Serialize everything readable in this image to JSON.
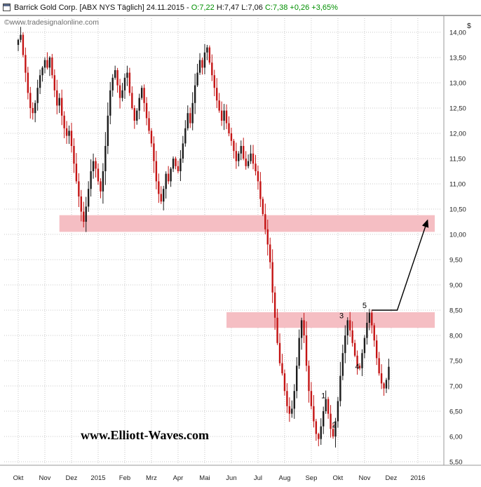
{
  "header": {
    "instrument": "Barrick Gold Corp. [ABX NYS  Täglich] 24.11.2015 -",
    "open": "O:7,22",
    "hl": "H:7,47 L:7,06",
    "close": "C:7,38 +0,26 +3,65%"
  },
  "watermark": "©www.tradesignalonline.com",
  "annotation_text": "www.Elliott-Waves.com",
  "colors": {
    "up_candle": "#1c1c1c",
    "down_candle": "#c41414",
    "support_zone": "#f5bec3",
    "quote_green": "#008f00",
    "grid": "#c8c8c8"
  },
  "chart_data": {
    "type": "candlestick",
    "instrument": "Barrick Gold Corp.",
    "symbol": "ABX NYS",
    "interval": "Täglich",
    "date": "24.11.2015",
    "ylabel": "$",
    "ylim": [
      5.5,
      14.0
    ],
    "grid": "dotted",
    "y_ticks": [
      "14,00",
      "13,50",
      "13,00",
      "12,50",
      "12,00",
      "11,50",
      "11,00",
      "10,50",
      "10,00",
      "9,50",
      "9,00",
      "8,50",
      "8,00",
      "7,50",
      "7,00",
      "6,50",
      "6,00",
      "5,50"
    ],
    "x_ticks": [
      "Okt",
      "Nov",
      "Dez",
      "2015",
      "Feb",
      "Mrz",
      "Apr",
      "Mai",
      "Jun",
      "Jul",
      "Aug",
      "Sep",
      "Okt",
      "Nov",
      "Dez",
      "2016"
    ],
    "candles_per_month": 11,
    "closes": [
      13.85,
      13.95,
      13.55,
      13.2,
      12.8,
      12.5,
      12.4,
      12.6,
      12.9,
      13.15,
      13.3,
      13.45,
      13.3,
      13.5,
      13.15,
      12.85,
      12.55,
      12.7,
      12.35,
      12.1,
      11.95,
      12.05,
      11.75,
      11.4,
      11.05,
      10.75,
      10.45,
      10.25,
      10.55,
      10.9,
      11.25,
      11.45,
      11.3,
      11.05,
      10.85,
      11.25,
      11.75,
      12.35,
      12.85,
      13.1,
      13.25,
      12.95,
      12.7,
      12.85,
      13.1,
      13.2,
      12.8,
      12.5,
      12.25,
      12.45,
      12.7,
      12.9,
      12.6,
      12.3,
      12.05,
      11.8,
      11.45,
      11.05,
      10.8,
      10.65,
      10.9,
      11.2,
      11.05,
      11.3,
      11.5,
      11.35,
      11.25,
      11.5,
      11.8,
      12.1,
      12.4,
      12.2,
      12.6,
      12.95,
      13.2,
      13.45,
      13.3,
      13.6,
      13.7,
      13.4,
      13.15,
      12.9,
      12.65,
      12.45,
      12.25,
      12.45,
      12.2,
      12.0,
      11.85,
      11.65,
      11.45,
      11.6,
      11.75,
      11.5,
      11.35,
      11.45,
      11.6,
      11.4,
      11.25,
      11.05,
      10.7,
      10.4,
      10.1,
      9.8,
      9.45,
      8.85,
      8.35,
      7.85,
      7.45,
      7.25,
      6.9,
      6.6,
      6.45,
      6.55,
      6.9,
      7.4,
      7.95,
      8.3,
      8.0,
      7.4,
      6.9,
      6.6,
      6.3,
      6.05,
      5.95,
      6.2,
      6.5,
      6.74,
      6.45,
      6.15,
      6.0,
      6.3,
      6.7,
      7.2,
      7.65,
      8.0,
      8.3,
      8.1,
      7.85,
      7.6,
      7.4,
      7.35,
      7.65,
      7.95,
      8.25,
      8.45,
      8.2,
      7.9,
      7.55,
      7.25,
      7.05,
      6.95,
      7.12,
      7.38
    ],
    "last_quote": {
      "open": "7,22",
      "high": "7,47",
      "low": "7,06",
      "close": "7,38",
      "change": "+0,26",
      "change_pct": "+3,65%"
    },
    "support_zones": [
      {
        "day_from": 17,
        "day_to": 172,
        "price_from": 10.05,
        "price_to": 10.38
      },
      {
        "day_from": 86,
        "day_to": 172,
        "price_from": 8.15,
        "price_to": 8.46
      }
    ],
    "wave_labels": [
      {
        "text": "1",
        "day": 126,
        "price": 6.76
      },
      {
        "text": "2",
        "day": 130.5,
        "price": 6.18
      },
      {
        "text": "3",
        "day": 133.5,
        "price": 8.34
      },
      {
        "text": "4",
        "day": 140,
        "price": 7.33
      },
      {
        "text": "5",
        "day": 143,
        "price": 8.54
      }
    ],
    "projection_arrow": {
      "points": [
        [
          146,
          8.5
        ],
        [
          156.5,
          8.5
        ],
        [
          169,
          10.28
        ]
      ]
    }
  }
}
